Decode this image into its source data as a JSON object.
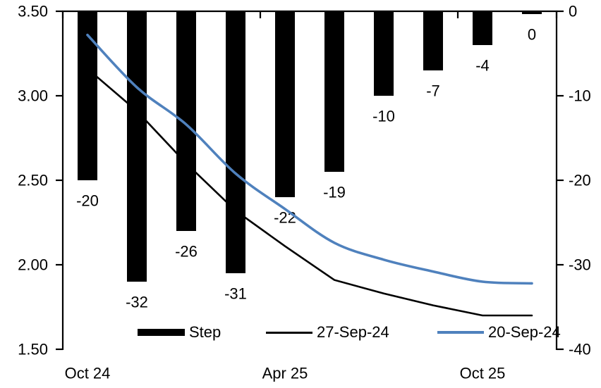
{
  "background": "#FFFFFF",
  "chart_data": {
    "type": "combo-bar-line",
    "title": "",
    "n_categories": 10,
    "x_axis": {
      "tick_labels": [
        "Oct 24",
        "Apr 25",
        "Oct 25"
      ],
      "tick_label_positions": [
        0,
        4,
        8
      ],
      "boundary_tick_interval": 4
    },
    "left_axis": {
      "min": 1.5,
      "max": 3.5,
      "tick_labels": [
        "3.50",
        "3.00",
        "2.50",
        "2.00",
        "1.50"
      ]
    },
    "right_axis": {
      "min": -40,
      "max": 0,
      "tick_labels": [
        "0",
        "-10",
        "-20",
        "-30",
        "-40"
      ]
    },
    "series": [
      {
        "name": "Step",
        "type": "bar",
        "axis": "right",
        "color": "#000000",
        "values": [
          -20,
          -32,
          -26,
          -31,
          -22,
          -19,
          -10,
          -7,
          -4,
          0
        ],
        "data_labels": [
          "-20",
          "-32",
          "-26",
          "-31",
          "-22",
          "-19",
          "-10",
          "-7",
          "-4",
          "0"
        ]
      },
      {
        "name": "27-Sep-24",
        "type": "line",
        "axis": "left",
        "color": "#000000",
        "smooth": false,
        "stroke_width": 2.6,
        "values": [
          3.16,
          2.91,
          2.6,
          2.32,
          2.11,
          1.91,
          1.83,
          1.76,
          1.7,
          1.7
        ]
      },
      {
        "name": "20-Sep-24",
        "type": "line",
        "axis": "left",
        "color": "#4F81BD",
        "smooth": true,
        "stroke_width": 3.6,
        "values": [
          3.36,
          3.05,
          2.83,
          2.54,
          2.33,
          2.13,
          2.03,
          1.96,
          1.9,
          1.89
        ]
      }
    ],
    "legend_position": "bottom-inside",
    "grid": "off"
  }
}
